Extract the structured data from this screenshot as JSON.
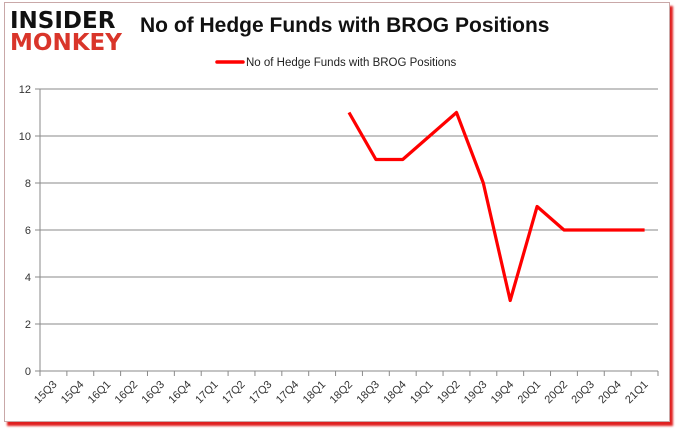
{
  "header": {
    "logo_line1": "INSIDER",
    "logo_line2": "MONKEY",
    "title": "No of Hedge Funds with BROG Positions"
  },
  "chart_data": {
    "type": "line",
    "title": "No of Hedge Funds with BROG Positions",
    "xlabel": "",
    "ylabel": "",
    "ylim": [
      0,
      12
    ],
    "yticks": [
      0,
      2,
      4,
      6,
      8,
      10,
      12
    ],
    "grid": true,
    "legend_position": "top",
    "categories": [
      "15Q3",
      "15Q4",
      "16Q1",
      "16Q2",
      "16Q3",
      "16Q4",
      "17Q1",
      "17Q2",
      "17Q3",
      "17Q4",
      "18Q1",
      "18Q2",
      "18Q3",
      "18Q4",
      "19Q1",
      "19Q2",
      "19Q3",
      "19Q4",
      "20Q1",
      "20Q2",
      "20Q3",
      "20Q4",
      "21Q1"
    ],
    "series": [
      {
        "name": "No of Hedge Funds with BROG Positions",
        "color": "#ff0000",
        "values": [
          null,
          null,
          null,
          null,
          null,
          null,
          null,
          null,
          null,
          null,
          null,
          11,
          9,
          9,
          10,
          11,
          8,
          3,
          7,
          6,
          6,
          6,
          6
        ]
      }
    ]
  }
}
